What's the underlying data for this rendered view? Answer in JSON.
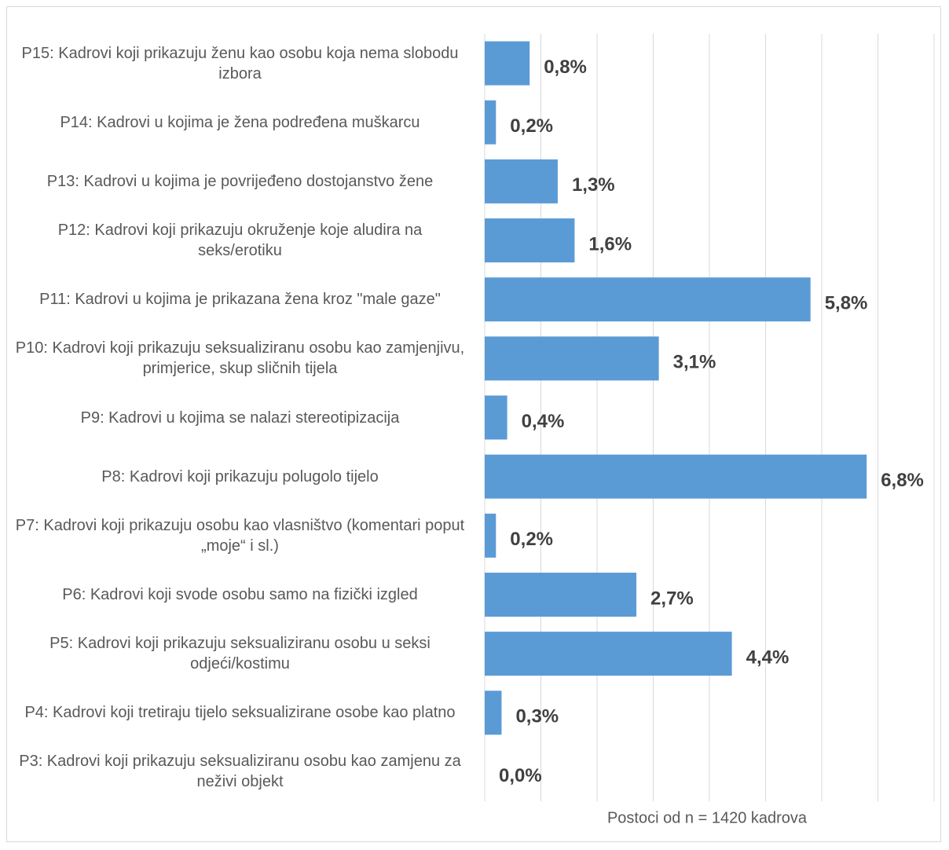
{
  "chart_data": {
    "type": "bar",
    "orientation": "horizontal",
    "categories": [
      "P15: Kadrovi koji prikazuju ženu kao osobu koja nema slobodu izbora",
      "P14: Kadrovi u kojima je žena podređena muškarcu",
      "P13: Kadrovi u kojima je povrijeđeno dostojanstvo žene",
      "P12: Kadrovi koji prikazuju okruženje koje aludira na seks/erotiku",
      "P11: Kadrovi u kojima je prikazana žena kroz \"male gaze\"",
      "P10: Kadrovi koji prikazuju seksualiziranu osobu kao zamjenjivu, primjerice, skup sličnih tijela",
      "P9: Kadrovi u kojima se nalazi stereotipizacija",
      "P8: Kadrovi koji prikazuju polugolo tijelo",
      "P7: Kadrovi koji prikazuju osobu kao vlasništvo (komentari poput „moje“ i sl.)",
      "P6: Kadrovi koji svode osobu samo na fizički izgled",
      "P5: Kadrovi koji prikazuju seksualiziranu osobu u seksi odjeći/kostimu",
      "P4: Kadrovi koji tretiraju tijelo seksualizirane osobe kao platno",
      "P3: Kadrovi koji prikazuju seksualiziranu osobu kao zamjenu za neživi objekt"
    ],
    "values": [
      0.8,
      0.2,
      1.3,
      1.6,
      5.8,
      3.1,
      0.4,
      6.8,
      0.2,
      2.7,
      4.4,
      0.3,
      0.0
    ],
    "value_labels": [
      "0,8%",
      "0,2%",
      "1,3%",
      "1,6%",
      "5,8%",
      "3,1%",
      "0,4%",
      "6,8%",
      "0,2%",
      "2,7%",
      "4,4%",
      "0,3%",
      "0,0%"
    ],
    "color": "#5b9bd5",
    "x_label": "Postoci od n = 1420 kadrova",
    "xlim": [
      0,
      8
    ],
    "xticks": [
      0,
      1,
      2,
      3,
      4,
      5,
      6,
      7,
      8
    ],
    "grid": true
  }
}
